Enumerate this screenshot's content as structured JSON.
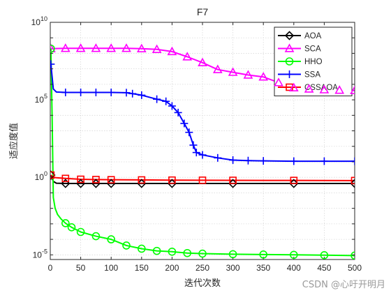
{
  "chart_data": {
    "type": "line",
    "title": "F7",
    "xlabel": "迭代次数",
    "ylabel": "适应度值",
    "xlim": [
      0,
      500
    ],
    "ylim": [
      5e-06,
      10000000000.0
    ],
    "yscale": "log",
    "xticks": [
      0,
      50,
      100,
      150,
      200,
      250,
      300,
      350,
      400,
      450,
      500
    ],
    "yticks": [
      {
        "value": 1e-05,
        "base": "10",
        "exp": "-5"
      },
      {
        "value": 1,
        "base": "10",
        "exp": "0"
      },
      {
        "value": 100000.0,
        "base": "10",
        "exp": "5"
      },
      {
        "value": 10000000000.0,
        "base": "10",
        "exp": "10"
      }
    ],
    "grid": true,
    "legend_position": "top-right",
    "series": [
      {
        "name": "AOA",
        "color": "#000000",
        "marker": "diamond",
        "x": [
          1,
          5,
          10,
          25,
          50,
          75,
          100,
          150,
          200,
          300,
          400,
          500
        ],
        "y": [
          1.4,
          0.55,
          0.42,
          0.4,
          0.4,
          0.4,
          0.4,
          0.4,
          0.4,
          0.4,
          0.4,
          0.4
        ]
      },
      {
        "name": "SCA",
        "color": "#ff00ff",
        "marker": "triangle",
        "x": [
          1,
          25,
          50,
          75,
          100,
          125,
          150,
          175,
          200,
          225,
          250,
          275,
          300,
          325,
          350,
          375,
          400,
          425,
          450,
          475,
          500
        ],
        "y": [
          200000000.0,
          210000000.0,
          210000000.0,
          210000000.0,
          210000000.0,
          210000000.0,
          200000000.0,
          180000000.0,
          130000000.0,
          60000000.0,
          25000000.0,
          9000000.0,
          6000000.0,
          4000000.0,
          3000000.0,
          1300000.0,
          600000.0,
          500000.0,
          450000.0,
          420000.0,
          400000.0
        ]
      },
      {
        "name": "HHO",
        "color": "#00ff00",
        "marker": "circle",
        "x": [
          1,
          3,
          5,
          8,
          12,
          18,
          25,
          35,
          50,
          75,
          100,
          125,
          150,
          175,
          200,
          225,
          250,
          300,
          350,
          400,
          450,
          500
        ],
        "y": [
          200000000.0,
          10000.0,
          0.05,
          0.01,
          0.004,
          0.002,
          0.0011,
          0.0006,
          0.0003,
          0.00016,
          0.0001,
          4e-05,
          2.5e-05,
          1.8e-05,
          1.6e-05,
          1.3e-05,
          1.2e-05,
          1.1e-05,
          1.05e-05,
          1e-05,
          9.5e-06,
          9e-06
        ]
      },
      {
        "name": "SSA",
        "color": "#0000ff",
        "marker": "plus",
        "x": [
          1,
          5,
          10,
          25,
          50,
          75,
          100,
          125,
          135,
          150,
          175,
          190,
          200,
          210,
          220,
          228,
          235,
          240,
          250,
          275,
          300,
          325,
          350,
          400,
          450,
          500
        ],
        "y": [
          20000000.0,
          500000.0,
          320000.0,
          300000.0,
          300000.0,
          300000.0,
          300000.0,
          290000.0,
          250000.0,
          200000.0,
          110000.0,
          80000.0,
          40000.0,
          15000.0,
          3000.0,
          800,
          120,
          40,
          28,
          18,
          13,
          12,
          11.5,
          11,
          11,
          11
        ]
      },
      {
        "name": "CSSAOA",
        "color": "#ff0000",
        "marker": "square",
        "x": [
          1,
          5,
          10,
          25,
          50,
          75,
          100,
          150,
          200,
          250,
          300,
          400,
          500
        ],
        "y": [
          1.4,
          1.0,
          0.95,
          0.85,
          0.75,
          0.72,
          0.7,
          0.68,
          0.66,
          0.65,
          0.64,
          0.63,
          0.62
        ]
      }
    ]
  },
  "watermark": "CSDN @心吁开明月"
}
